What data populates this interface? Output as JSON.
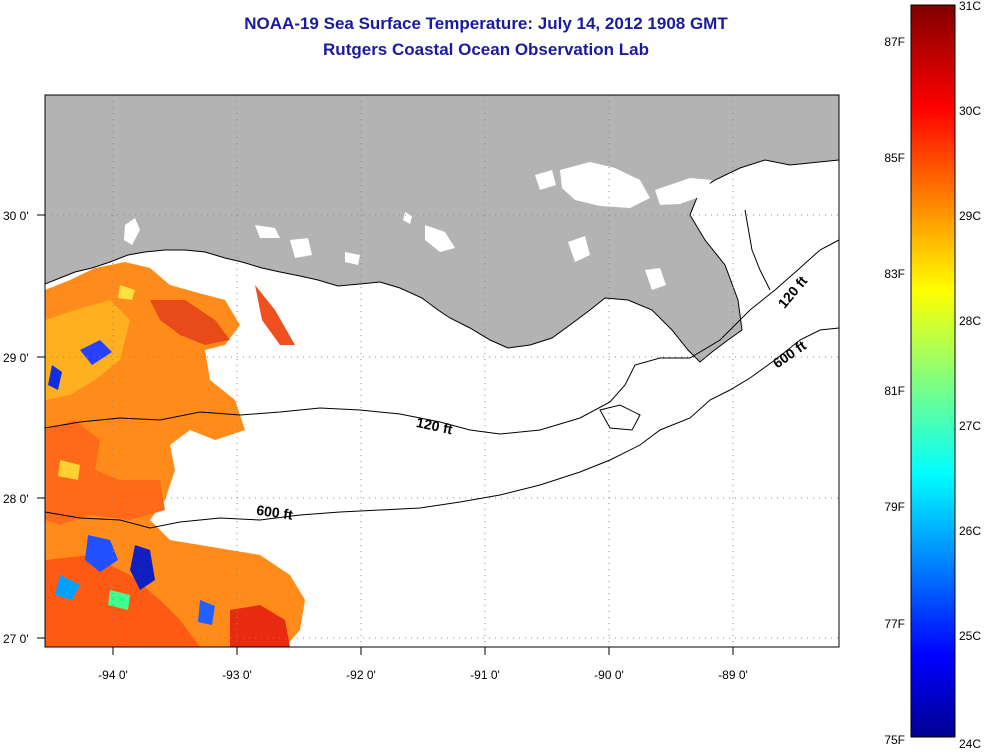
{
  "header": {
    "title": "NOAA-19 Sea Surface Temperature:  July 14, 2012 1908 GMT",
    "subtitle": "Rutgers Coastal Ocean Observation Lab"
  },
  "map": {
    "lon_ticks": [
      "-94 0'",
      "-93 0'",
      "-92 0'",
      "-91 0'",
      "-90 0'",
      "-89 0'"
    ],
    "lat_ticks": [
      "30 0'",
      "29 0'",
      "28 0'",
      "27 0'"
    ],
    "lon_range": [
      -94.55,
      -88.25
    ],
    "lat_range": [
      26.95,
      30.85
    ],
    "contours": [
      {
        "label": "120 ft",
        "depth_ft": 120
      },
      {
        "label": "600 ft",
        "depth_ft": 600
      }
    ],
    "land_color": "#b3b3b3",
    "water_color": "#ffffff"
  },
  "colorbar": {
    "fahrenheit_labels": [
      "87F",
      "85F",
      "83F",
      "81F",
      "79F",
      "77F",
      "75F"
    ],
    "celsius_labels": [
      "31C",
      "30C",
      "29C",
      "28C",
      "27C",
      "26C",
      "25C",
      "24C"
    ],
    "range_c": [
      24,
      31
    ],
    "colormap": "jet"
  }
}
